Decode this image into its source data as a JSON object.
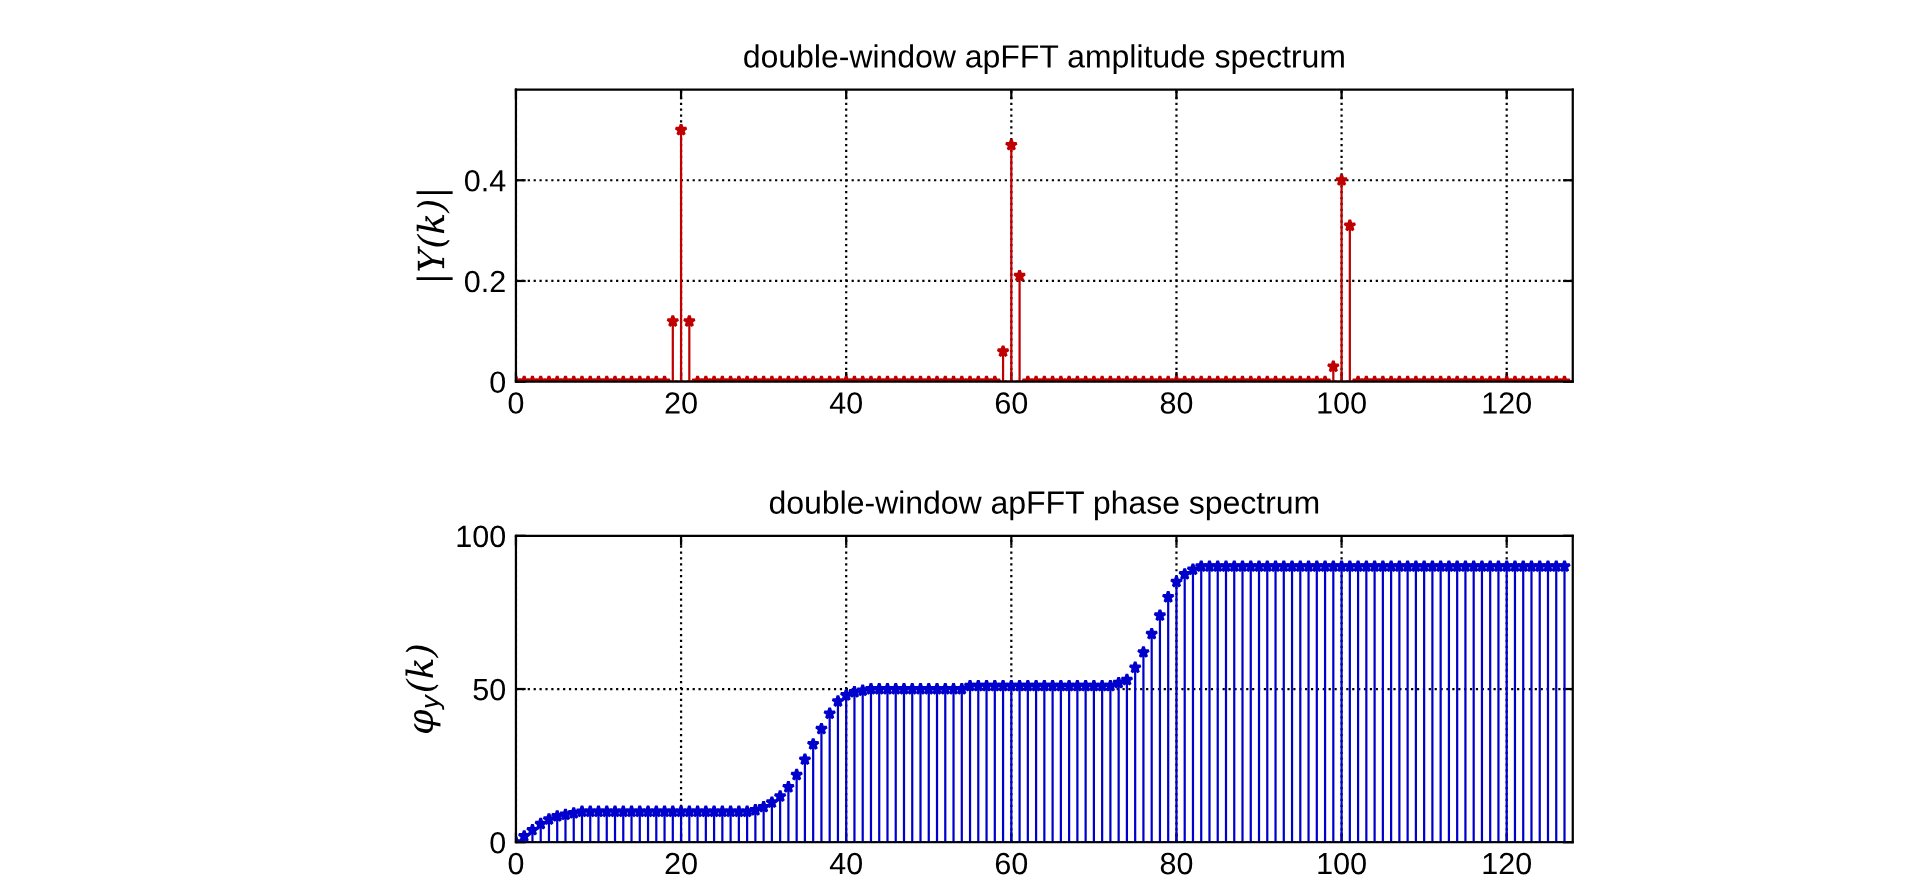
{
  "chart_data": [
    {
      "type": "lollipop",
      "title": "double-window apFFT amplitude spectrum",
      "ylabel": "|Y(k)|",
      "x": [
        0,
        1,
        2,
        3,
        4,
        5,
        6,
        7,
        8,
        9,
        10,
        11,
        12,
        13,
        14,
        15,
        16,
        17,
        18,
        19,
        20,
        21,
        22,
        23,
        24,
        25,
        26,
        27,
        28,
        29,
        30,
        31,
        32,
        33,
        34,
        35,
        36,
        37,
        38,
        39,
        40,
        41,
        42,
        43,
        44,
        45,
        46,
        47,
        48,
        49,
        50,
        51,
        52,
        53,
        54,
        55,
        56,
        57,
        58,
        59,
        60,
        61,
        62,
        63,
        64,
        65,
        66,
        67,
        68,
        69,
        70,
        71,
        72,
        73,
        74,
        75,
        76,
        77,
        78,
        79,
        80,
        81,
        82,
        83,
        84,
        85,
        86,
        87,
        88,
        89,
        90,
        91,
        92,
        93,
        94,
        95,
        96,
        97,
        98,
        99,
        100,
        101,
        102,
        103,
        104,
        105,
        106,
        107,
        108,
        109,
        110,
        111,
        112,
        113,
        114,
        115,
        116,
        117,
        118,
        119,
        120,
        121,
        122,
        123,
        124,
        125,
        126,
        127
      ],
      "series": [
        {
          "color": "#c00000",
          "values": [
            0,
            0,
            0,
            0,
            0,
            0,
            0,
            0,
            0,
            0,
            0,
            0,
            0,
            0,
            0,
            0,
            0,
            0,
            0,
            0.12,
            0.5,
            0.12,
            0,
            0,
            0,
            0,
            0,
            0,
            0,
            0,
            0,
            0,
            0,
            0,
            0,
            0,
            0,
            0,
            0,
            0,
            0,
            0,
            0,
            0,
            0,
            0,
            0,
            0,
            0,
            0,
            0,
            0,
            0,
            0,
            0,
            0,
            0,
            0,
            0,
            0.06,
            0.47,
            0.21,
            0,
            0,
            0,
            0,
            0,
            0,
            0,
            0,
            0,
            0,
            0,
            0,
            0,
            0,
            0,
            0,
            0,
            0,
            0,
            0,
            0,
            0,
            0,
            0,
            0,
            0,
            0,
            0,
            0,
            0,
            0,
            0,
            0,
            0,
            0,
            0,
            0,
            0.03,
            0.4,
            0.31,
            0,
            0,
            0,
            0,
            0,
            0,
            0,
            0,
            0,
            0,
            0,
            0,
            0,
            0,
            0,
            0,
            0,
            0,
            0,
            0,
            0,
            0,
            0,
            0,
            0,
            0
          ]
        }
      ],
      "xlim": [
        0,
        128
      ],
      "xticks": [
        0,
        20,
        40,
        60,
        80,
        100,
        120
      ],
      "ylim": [
        0,
        0.58
      ],
      "yticks": [
        0,
        0.2,
        0.4
      ],
      "grid": true,
      "marker": "star"
    },
    {
      "type": "lollipop",
      "title": "double-window apFFT phase spectrum",
      "ylabel": "φ$_{y}$(k)",
      "x": [
        0,
        1,
        2,
        3,
        4,
        5,
        6,
        7,
        8,
        9,
        10,
        11,
        12,
        13,
        14,
        15,
        16,
        17,
        18,
        19,
        20,
        21,
        22,
        23,
        24,
        25,
        26,
        27,
        28,
        29,
        30,
        31,
        32,
        33,
        34,
        35,
        36,
        37,
        38,
        39,
        40,
        41,
        42,
        43,
        44,
        45,
        46,
        47,
        48,
        49,
        50,
        51,
        52,
        53,
        54,
        55,
        56,
        57,
        58,
        59,
        60,
        61,
        62,
        63,
        64,
        65,
        66,
        67,
        68,
        69,
        70,
        71,
        72,
        73,
        74,
        75,
        76,
        77,
        78,
        79,
        80,
        81,
        82,
        83,
        84,
        85,
        86,
        87,
        88,
        89,
        90,
        91,
        92,
        93,
        94,
        95,
        96,
        97,
        98,
        99,
        100,
        101,
        102,
        103,
        104,
        105,
        106,
        107,
        108,
        109,
        110,
        111,
        112,
        113,
        114,
        115,
        116,
        117,
        118,
        119,
        120,
        121,
        122,
        123,
        124,
        125,
        126,
        127
      ],
      "series": [
        {
          "color": "#0000cc",
          "values": [
            0,
            2,
            4,
            6,
            7.5,
            8.5,
            9,
            9.5,
            10,
            10,
            10,
            10,
            10,
            10,
            10,
            10,
            10,
            10,
            10,
            10,
            10,
            10,
            10,
            10,
            10,
            10,
            10,
            10,
            10,
            10.5,
            11.5,
            13,
            15,
            18,
            22,
            27,
            32,
            37,
            42,
            46,
            48,
            49,
            49.5,
            50,
            50,
            50,
            50,
            50,
            50,
            50,
            50,
            50,
            50,
            50,
            50,
            51,
            51,
            51,
            51,
            51,
            51,
            51,
            51,
            51,
            51,
            51,
            51,
            51,
            51,
            51,
            51,
            51,
            51,
            52,
            53,
            57,
            62,
            68,
            74,
            80,
            85,
            87.5,
            89,
            90,
            90,
            90,
            90,
            90,
            90,
            90,
            90,
            90,
            90,
            90,
            90,
            90,
            90,
            90,
            90,
            90,
            90,
            90,
            90,
            90,
            90,
            90,
            90,
            90,
            90,
            90,
            90,
            90,
            90,
            90,
            90,
            90,
            90,
            90,
            90,
            90,
            90,
            90,
            90,
            90,
            90,
            90,
            90,
            90
          ]
        }
      ],
      "xlim": [
        0,
        128
      ],
      "xticks": [
        0,
        20,
        40,
        60,
        80,
        100,
        120
      ],
      "ylim": [
        0,
        100
      ],
      "yticks": [
        0,
        50,
        100
      ],
      "grid": true,
      "marker": "star"
    }
  ]
}
